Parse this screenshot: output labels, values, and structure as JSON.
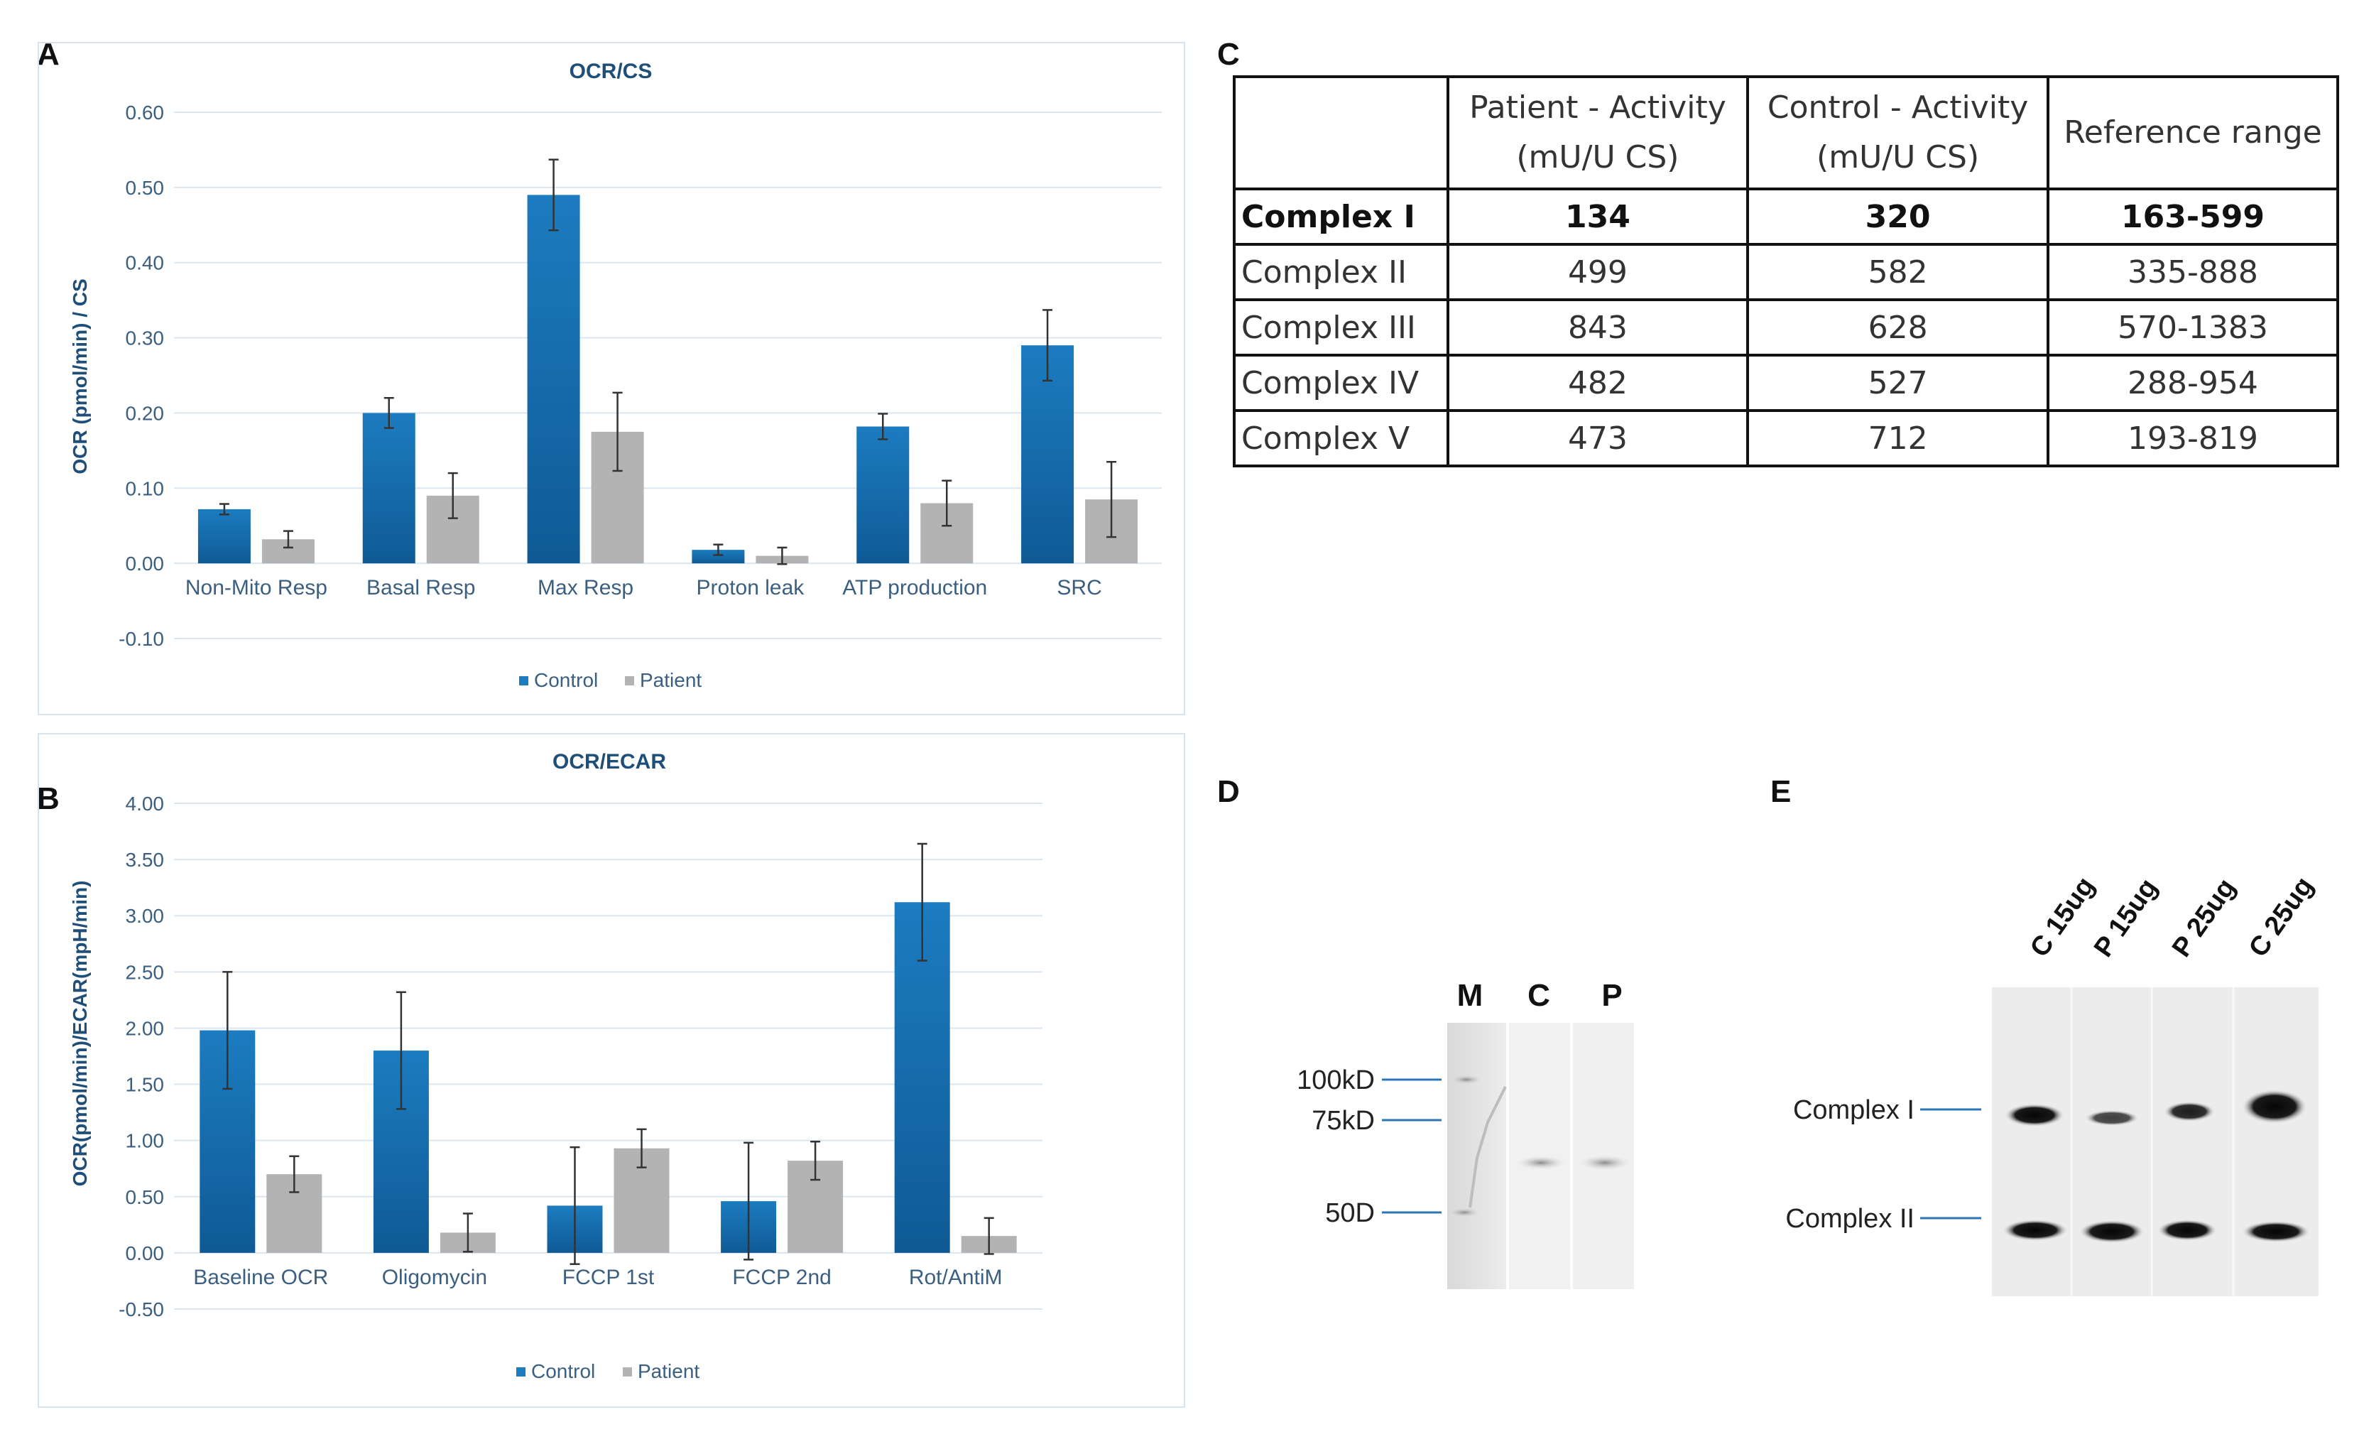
{
  "panels": {
    "a": "A",
    "b": "B",
    "c": "C",
    "d": "D",
    "e": "E"
  },
  "colors": {
    "control": "#1c7cc0",
    "control_dark": "#0f5a95",
    "patient": "#b3b3b3",
    "grid": "#dbe6f0",
    "axis_text": "#3b5f80",
    "title": "#1f4e79"
  },
  "chart_data": [
    {
      "type": "bar",
      "title": "OCR/CS",
      "ylabel": "OCR (pmol/min) / CS",
      "xlabel": "",
      "ylim": [
        -0.1,
        0.6
      ],
      "yticks": [
        -0.1,
        0.0,
        0.1,
        0.2,
        0.3,
        0.4,
        0.5,
        0.6
      ],
      "ytick_labels": [
        "-0.10",
        "0.00",
        "0.10",
        "0.20",
        "0.30",
        "0.40",
        "0.50",
        "0.60"
      ],
      "categories": [
        "Non-Mito Resp",
        "Basal Resp",
        "Max Resp",
        "Proton leak",
        "ATP production",
        "SRC"
      ],
      "series": [
        {
          "name": "Control",
          "values": [
            0.072,
            0.2,
            0.49,
            0.018,
            0.182,
            0.29
          ],
          "errors": [
            0.007,
            0.02,
            0.047,
            0.007,
            0.017,
            0.047
          ]
        },
        {
          "name": "Patient",
          "values": [
            0.032,
            0.09,
            0.175,
            0.01,
            0.08,
            0.085
          ],
          "errors": [
            0.011,
            0.03,
            0.052,
            0.011,
            0.03,
            0.05
          ]
        }
      ],
      "legend": [
        "Control",
        "Patient"
      ],
      "legend_position": "bottom",
      "grid": true
    },
    {
      "type": "bar",
      "title": "OCR/ECAR",
      "ylabel": "OCR(pmol/min)/ECAR(mpH/min)",
      "xlabel": "",
      "ylim": [
        -0.5,
        4.0
      ],
      "yticks": [
        -0.5,
        0.0,
        0.5,
        1.0,
        1.5,
        2.0,
        2.5,
        3.0,
        3.5,
        4.0
      ],
      "ytick_labels": [
        "-0.50",
        "0.00",
        "0.50",
        "1.00",
        "1.50",
        "2.00",
        "2.50",
        "3.00",
        "3.50",
        "4.00"
      ],
      "categories": [
        "Baseline OCR",
        "Oligomycin",
        "FCCP 1st",
        "FCCP 2nd",
        "Rot/AntiM"
      ],
      "series": [
        {
          "name": "Control",
          "values": [
            1.98,
            1.8,
            0.42,
            0.46,
            3.12
          ],
          "errors": [
            0.52,
            0.52,
            0.52,
            0.52,
            0.52
          ]
        },
        {
          "name": "Patient",
          "values": [
            0.7,
            0.18,
            0.93,
            0.82,
            0.15
          ],
          "errors": [
            0.16,
            0.17,
            0.17,
            0.17,
            0.16
          ]
        }
      ],
      "legend": [
        "Control",
        "Patient"
      ],
      "legend_position": "bottom",
      "grid": true
    },
    {
      "type": "table",
      "columns": [
        "",
        "Patient - Activity (mU/U CS)",
        "Control - Activity (mU/U CS)",
        "Reference range"
      ],
      "rows": [
        [
          "Complex I",
          "134",
          "320",
          "163-599"
        ],
        [
          "Complex II",
          "499",
          "582",
          "335-888"
        ],
        [
          "Complex III",
          "843",
          "628",
          "570-1383"
        ],
        [
          "Complex IV",
          "482",
          "527",
          "288-954"
        ],
        [
          "Complex V",
          "473",
          "712",
          "193-819"
        ]
      ]
    }
  ],
  "gel_d": {
    "lanes": [
      "M",
      "C",
      "P"
    ],
    "markers": [
      "100kD",
      "75kD",
      "50D"
    ]
  },
  "blot_e": {
    "lanes": [
      "C 15ug",
      "P 15ug",
      "P 25ug",
      "C 25ug"
    ],
    "bands": [
      "Complex I",
      "Complex II"
    ]
  }
}
